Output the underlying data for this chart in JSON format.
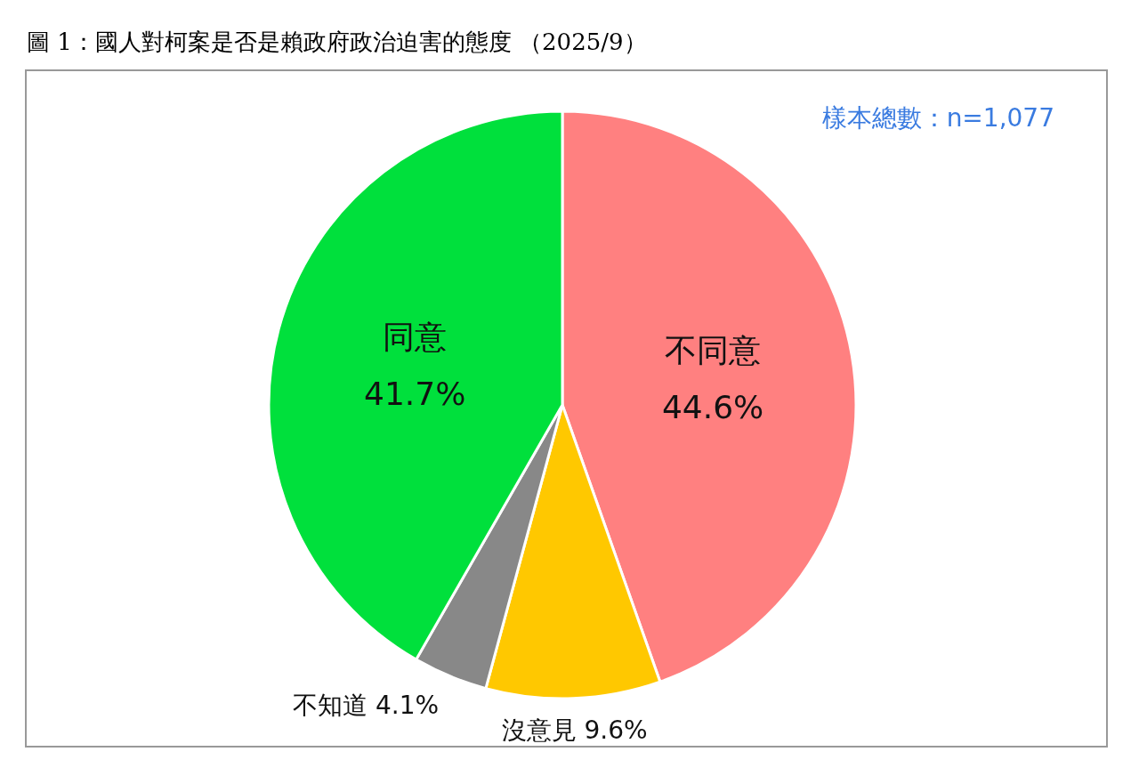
{
  "chart_data": {
    "type": "pie",
    "title": "圖 1：國人對柯案是否是賴政府政治迫害的態度 （2025/9）",
    "categories": [
      "不同意",
      "沒意見",
      "不知道",
      "同意"
    ],
    "values": [
      44.6,
      9.6,
      4.1,
      41.7
    ],
    "colors": [
      "#ff8080",
      "#ffc800",
      "#888888",
      "#00e03c"
    ],
    "value_labels": [
      "44.6%",
      "9.6%",
      "4.1%",
      "41.7%"
    ],
    "annotations": [
      "樣本總數：n=1,077"
    ]
  }
}
